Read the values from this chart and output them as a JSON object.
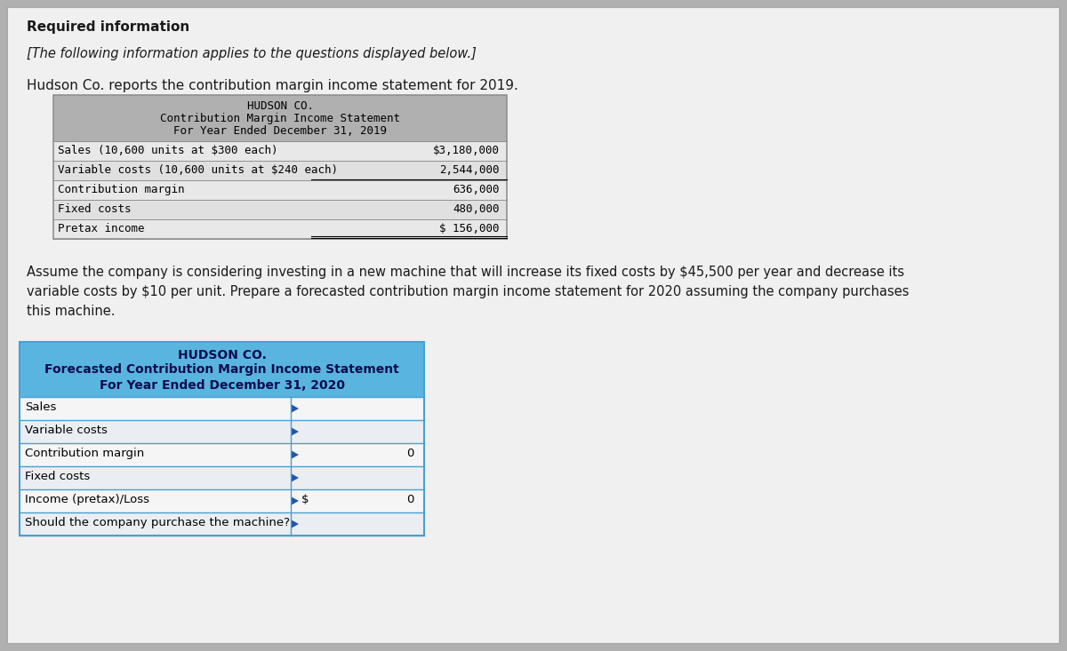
{
  "outer_bg": "#b0b0b0",
  "page_bg": "#f0f0f0",
  "page_border": "#aaaaaa",
  "title_required": "Required information",
  "subtitle_italic": "[The following information applies to the questions displayed below.]",
  "intro_text": "Hudson Co. reports the contribution margin income statement for 2019.",
  "table1": {
    "header_bg": "#b0b0b0",
    "header_lines": [
      "HUDSON CO.",
      "Contribution Margin Income Statement",
      "For Year Ended December 31, 2019"
    ],
    "rows": [
      {
        "label": "Sales (10,600 units at $300 each)",
        "value": "$3,180,000"
      },
      {
        "label": "Variable costs (10,600 units at $240 each)",
        "value": "2,544,000"
      },
      {
        "label": "Contribution margin",
        "value": "636,000"
      },
      {
        "label": "Fixed costs",
        "value": "480,000"
      },
      {
        "label": "Pretax income",
        "value": "$ 156,000"
      }
    ],
    "row_bgs": [
      "#e8e8e8",
      "#e0e0e0",
      "#e8e8e8",
      "#e0e0e0",
      "#e8e8e8"
    ],
    "border_color": "#909090"
  },
  "paragraph_lines": [
    "Assume the company is considering investing in a new machine that will increase its fixed costs by $45,500 per year and decrease its",
    "variable costs by $10 per unit. Prepare a forecasted contribution margin income statement for 2020 assuming the company purchases",
    "this machine."
  ],
  "table2": {
    "header_bg": "#5ab4e0",
    "header_lines": [
      "HUDSON CO.",
      "Forecasted Contribution Margin Income Statement",
      "For Year Ended December 31, 2020"
    ],
    "rows": [
      {
        "label": "Sales",
        "dollar": "",
        "value": ""
      },
      {
        "label": "Variable costs",
        "dollar": "",
        "value": ""
      },
      {
        "label": "Contribution margin",
        "dollar": "",
        "value": "0"
      },
      {
        "label": "Fixed costs",
        "dollar": "",
        "value": ""
      },
      {
        "label": "Income (pretax)/Loss",
        "dollar": "$",
        "value": "0"
      },
      {
        "label": "Should the company purchase the machine?",
        "dollar": "",
        "value": ""
      }
    ],
    "row_bgs": [
      "#f5f5f5",
      "#eaeef2",
      "#f5f5f5",
      "#eaeef2",
      "#f5f5f5",
      "#eaeef2"
    ],
    "border_color": "#4a9fd0",
    "triangle_color": "#2255aa"
  }
}
